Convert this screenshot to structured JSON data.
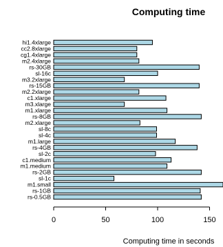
{
  "chart_data": {
    "type": "bar",
    "orientation": "horizontal",
    "title": "Computing time",
    "xlabel": "Computing time in seconds",
    "ylabel": "",
    "xlim": [
      0,
      160
    ],
    "xticks": [
      0,
      50,
      100,
      150
    ],
    "bar_color": "#add8e6",
    "grid": false,
    "categories": [
      "hi1.4xlarge",
      "cc2.8xlarge",
      "cg1.4xlarge",
      "m2.4xlarge",
      "rs-30GB",
      "sl-16c",
      "m3.2xlarge",
      "rs-15GB",
      "m2.2xlarge",
      "c1.xlarge",
      "m3.xlarge",
      "m1.xlarge",
      "rs-8GB",
      "m2.xlarge",
      "sl-8c",
      "sl-4c",
      "m1.large",
      "rs-4GB",
      "sl-2c",
      "c1.medium",
      "m1.medium",
      "rs-2GB",
      "sl-1c",
      "m1.small",
      "rs-1GB",
      "rs-0.5GB"
    ],
    "values": [
      95,
      80,
      80,
      82,
      140,
      100,
      68,
      140,
      82,
      108,
      68,
      109,
      142,
      83,
      99,
      99,
      117,
      138,
      98,
      113,
      109,
      142,
      58,
      165,
      141,
      142
    ]
  }
}
